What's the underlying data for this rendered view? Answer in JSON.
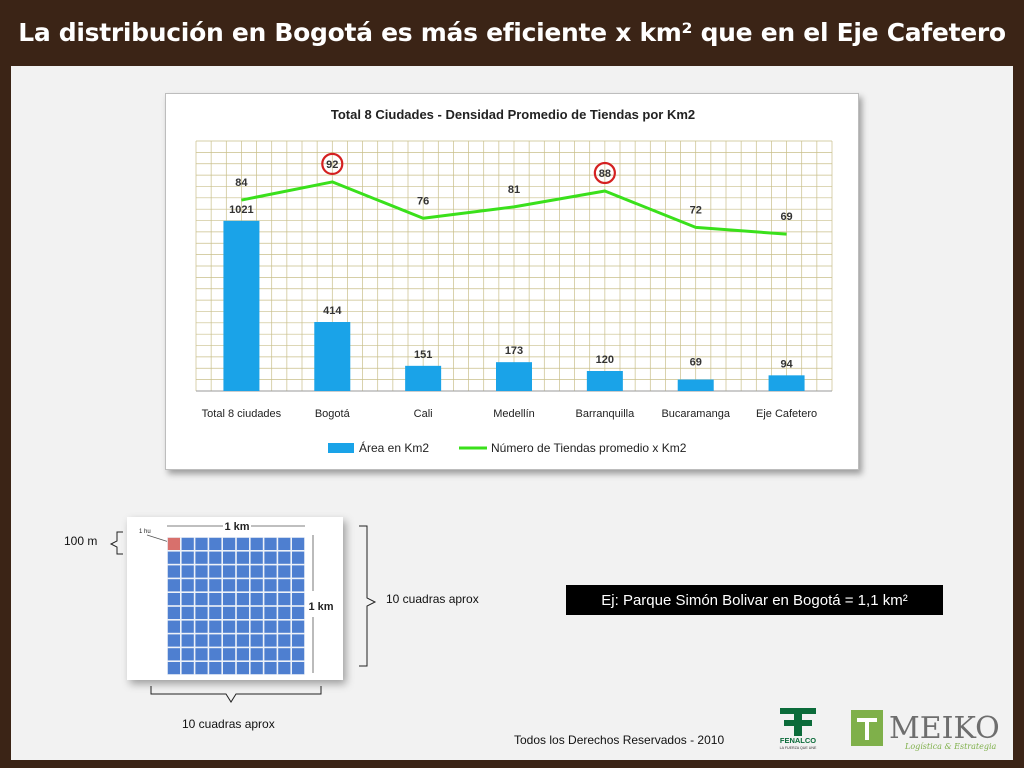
{
  "slide": {
    "title": "La distribución en Bogotá es más eficiente x km² que en el Eje Cafetero",
    "example": "Ej: Parque Simón Bolivar en Bogotá = 1,1 km²",
    "footer": "Todos los Derechos Reservados - 2010"
  },
  "scale_figure": {
    "top_label": "1 km",
    "side_label": "1 km",
    "cell_label": "1 hu",
    "left_label": "100 m",
    "right_label": "10 cuadras aprox",
    "bottom_label": "10 cuadras aprox"
  },
  "logos": {
    "fenalco": "FENALCO",
    "fenalco_tagline": "LA FUERZA QUE UNE",
    "meiko": "MEIKO",
    "meiko_tagline": "Logística & Estrategia"
  },
  "colors": {
    "bar": "#1aa3e8",
    "line": "#3ae01b",
    "grid": "#c9bf8a",
    "highlight": "#d42020",
    "title_bar": "#3b2416"
  },
  "chart_data": {
    "type": "bar",
    "title": "Total 8 Ciudades - Densidad Promedio de Tiendas por Km2",
    "categories": [
      "Total 8 ciudades",
      "Bogotá",
      "Cali",
      "Medellín",
      "Barranquilla",
      "Bucaramanga",
      "Eje Cafetero"
    ],
    "series": [
      {
        "name": "Área en Km2",
        "type": "bar",
        "values": [
          1021,
          414,
          151,
          173,
          120,
          69,
          94
        ]
      },
      {
        "name": "Número de Tiendas promedio x Km2",
        "type": "line",
        "values": [
          84,
          92,
          76,
          81,
          88,
          72,
          69
        ]
      }
    ],
    "highlighted": [
      "Bogotá",
      "Barranquilla"
    ],
    "legend": "bottom",
    "grid": true
  }
}
